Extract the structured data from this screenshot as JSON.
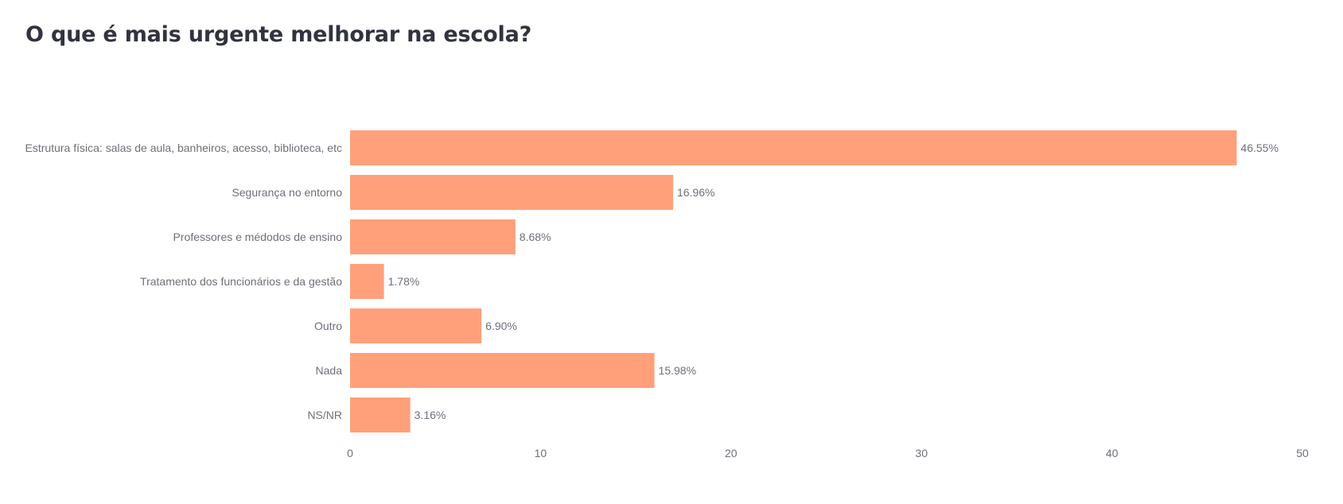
{
  "chart_data": {
    "type": "bar",
    "orientation": "horizontal",
    "title": "O que é mais urgente melhorar na escola?",
    "xlabel": "",
    "ylabel": "",
    "categories": [
      "Estrutura física: salas de aula, banheiros, acesso, biblioteca, etc",
      "Segurança no entorno",
      "Professores e médodos de ensino",
      "Tratamento dos funcionários e da gestão",
      "Outro",
      "Nada",
      "NS/NR"
    ],
    "values": [
      46.55,
      16.96,
      8.68,
      1.78,
      6.9,
      15.98,
      3.16
    ],
    "value_labels": [
      "46.55%",
      "16.96%",
      "8.68%",
      "1.78%",
      "6.90%",
      "15.98%",
      "3.16%"
    ],
    "xlim": [
      0,
      50
    ],
    "xticks": [
      0,
      10,
      20,
      30,
      40,
      50
    ],
    "grid": false,
    "legend": "none",
    "bar_color": "#ffa07a"
  }
}
